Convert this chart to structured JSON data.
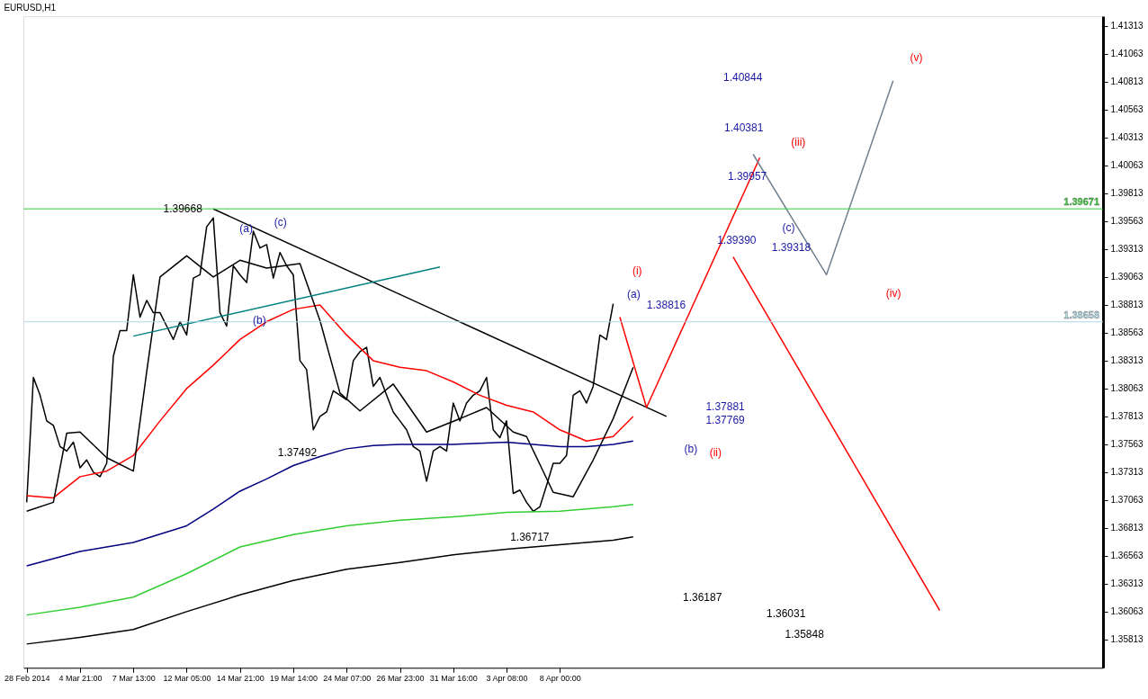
{
  "chart_data": {
    "type": "line",
    "title": "EURUSD,H1",
    "categories": [
      "28 Feb 2014",
      null,
      null,
      null,
      null,
      null,
      null,
      null,
      "4 Mar 21:00",
      null,
      null,
      null,
      null,
      null,
      null,
      null,
      "7 Mar 13:00",
      null,
      null,
      null,
      null,
      null,
      null,
      null,
      "12 Mar 05:00",
      null,
      null,
      null,
      null,
      null,
      null,
      null,
      "14 Mar 21:00",
      null,
      null,
      null,
      null,
      null,
      null,
      null,
      "19 Mar 14:00",
      null,
      null,
      null,
      null,
      null,
      null,
      null,
      "24 Mar 07:00",
      null,
      null,
      null,
      null,
      null,
      null,
      null,
      "26 Mar 23:00",
      null,
      null,
      null,
      null,
      null,
      null,
      null,
      "31 Mar 16:00",
      null,
      null,
      null,
      null,
      null,
      null,
      null,
      "3 Apr 08:00",
      null,
      null,
      null,
      null,
      null,
      null,
      null,
      "8 Apr 00:00",
      null,
      null,
      null,
      null,
      null,
      null,
      null,
      null,
      null,
      null,
      null,
      null,
      null,
      null,
      null,
      null,
      null,
      null,
      null,
      null,
      null,
      null,
      null,
      null,
      null,
      null,
      null,
      null,
      null,
      null,
      null,
      null,
      null,
      null,
      null,
      null,
      null,
      null,
      null,
      null,
      null,
      null,
      null,
      null,
      null,
      null,
      null,
      null,
      null,
      null,
      null,
      null,
      null,
      null,
      null,
      null,
      null,
      null,
      null,
      null,
      null,
      null,
      null,
      null,
      null,
      null,
      null,
      null,
      null,
      null,
      null,
      null,
      null,
      null,
      null,
      null,
      null,
      null,
      null,
      null,
      null
    ],
    "ylim": [
      1.35557,
      1.41398
    ],
    "yticks": [
      1.35813,
      1.36063,
      1.36313,
      1.36563,
      1.36813,
      1.37063,
      1.37313,
      1.37563,
      1.37813,
      1.38063,
      1.38313,
      1.38563,
      1.38813,
      1.39063,
      1.39313,
      1.39563,
      1.39813,
      1.40063,
      1.40313,
      1.40563,
      1.40813,
      1.41063,
      1.41313
    ],
    "grid": false,
    "marker": "none",
    "line_style": "solid",
    "series": [
      {
        "color": "#000000",
        "values": [
          1.3704,
          1.3816,
          1.38,
          1.3777,
          1.3773,
          1.3754,
          1.375,
          1.3758,
          1.3735,
          1.3742,
          1.3731,
          1.3727,
          1.3739,
          1.3835,
          1.3858,
          1.3858,
          1.3908,
          1.387,
          1.3885,
          1.3874,
          1.3874,
          1.3862,
          1.385,
          1.3866,
          1.3854,
          1.3905,
          1.3908,
          1.3951,
          1.3959,
          1.3874,
          1.3862,
          1.3916,
          1.3908,
          1.3901,
          1.3947,
          1.3932,
          1.3935,
          1.3905,
          1.3928,
          1.3916,
          1.3908,
          1.3831,
          1.3823,
          1.3769,
          1.3781,
          1.3785,
          1.3804,
          1.38,
          1.3796,
          1.3831,
          1.3839,
          1.3843,
          1.3808,
          1.3816,
          1.38,
          1.3785,
          1.3777,
          1.3769,
          1.3754,
          1.375,
          1.3723,
          1.375,
          1.3754,
          1.375,
          1.3793,
          1.3777,
          1.3793,
          1.38,
          1.3804,
          1.3816,
          1.3769,
          1.3762,
          1.3777,
          1.3712,
          1.3715,
          1.3704,
          1.3696,
          1.37,
          1.3719,
          1.3739,
          1.3739,
          1.3746,
          1.38,
          1.3804,
          1.3793,
          1.3808,
          1.3854,
          1.385,
          1.3882,
          null,
          null,
          null,
          null,
          null,
          null,
          null,
          null,
          null,
          null,
          null,
          null,
          null,
          null,
          null,
          null,
          null,
          null,
          null,
          null,
          null,
          null,
          null,
          null,
          null,
          null,
          null,
          null,
          null,
          null,
          null,
          null,
          null,
          null,
          null,
          null,
          null,
          null,
          null,
          null,
          null,
          null,
          null,
          null,
          null,
          null,
          null,
          null,
          null,
          null,
          null,
          null,
          null,
          null,
          null,
          null,
          null,
          null,
          null,
          null,
          null,
          null,
          null,
          null,
          null,
          null,
          null,
          null,
          null,
          null,
          null,
          null,
          null
        ]
      },
      {
        "color": "#ff0000",
        "values": [
          1.371,
          null,
          null,
          null,
          1.3708,
          null,
          null,
          null,
          1.3727,
          null,
          null,
          null,
          1.3732,
          null,
          null,
          null,
          1.3746,
          null,
          null,
          null,
          1.3777,
          null,
          null,
          null,
          1.3806,
          null,
          null,
          null,
          1.3827,
          null,
          null,
          null,
          1.385,
          null,
          null,
          null,
          1.3866,
          null,
          null,
          null,
          1.3877,
          null,
          null,
          null,
          1.3881,
          null,
          null,
          null,
          1.3854,
          null,
          null,
          null,
          1.3831,
          null,
          null,
          null,
          1.3825,
          null,
          null,
          null,
          1.3822,
          null,
          null,
          null,
          1.3812,
          null,
          null,
          null,
          1.38,
          null,
          null,
          null,
          1.3791,
          null,
          null,
          null,
          1.3785,
          null,
          null,
          null,
          1.3769,
          null,
          null,
          null,
          1.3759,
          null,
          null,
          null,
          1.3763,
          null,
          null,
          1.3781,
          null,
          null,
          null,
          null,
          null,
          null,
          null,
          null,
          null,
          null,
          null,
          null,
          null,
          null,
          null,
          null,
          null,
          null,
          null,
          null,
          null,
          null,
          null,
          null,
          null,
          null,
          null,
          null,
          null,
          null,
          null,
          null,
          null,
          null,
          null,
          null,
          null,
          null,
          null,
          null,
          null,
          null,
          null,
          null,
          null,
          null,
          null,
          null,
          null,
          null,
          null,
          null,
          null,
          null,
          null,
          null,
          null,
          null,
          null,
          null,
          null,
          null,
          null,
          null,
          null,
          null,
          null,
          null,
          null,
          null
        ]
      },
      {
        "color": "#000000",
        "values": [
          1.3696,
          null,
          null,
          null,
          1.3704,
          null,
          1.3766,
          null,
          1.3767,
          null,
          null,
          null,
          1.3744,
          null,
          null,
          null,
          1.3732,
          null,
          1.3821,
          null,
          1.3906,
          null,
          null,
          null,
          1.3925,
          null,
          null,
          null,
          1.3906,
          null,
          null,
          null,
          1.3921,
          null,
          null,
          null,
          1.3914,
          null,
          null,
          null,
          null,
          1.3918,
          null,
          null,
          1.3867,
          null,
          null,
          1.3802,
          null,
          null,
          1.3786,
          null,
          null,
          null,
          null,
          1.381,
          null,
          null,
          null,
          null,
          1.3767,
          null,
          null,
          null,
          null,
          1.3779,
          null,
          null,
          null,
          1.3789,
          null,
          null,
          null,
          1.3767,
          null,
          1.3763,
          null,
          null,
          null,
          1.3713,
          null,
          null,
          1.3709,
          null,
          null,
          1.3742,
          null,
          null,
          1.3779,
          null,
          null,
          1.3825,
          null,
          null,
          null,
          null,
          null,
          null,
          null,
          null,
          null,
          null,
          null,
          null,
          null,
          null,
          null,
          null,
          null,
          null,
          null,
          null,
          null,
          null,
          null,
          null,
          null,
          null,
          null,
          null,
          null,
          null,
          null,
          null,
          null,
          null,
          null,
          null,
          null,
          null,
          null,
          null,
          null,
          null,
          null,
          null,
          null,
          null,
          null,
          null,
          null,
          null,
          null,
          null,
          null,
          null,
          null,
          null,
          null,
          null,
          null,
          null,
          null,
          null,
          null,
          null,
          null,
          null,
          null,
          null,
          null,
          null
        ]
      },
      {
        "color": "#000080",
        "values": [
          1.3647,
          null,
          null,
          null,
          null,
          null,
          null,
          null,
          1.366,
          null,
          null,
          null,
          null,
          null,
          null,
          null,
          1.3668,
          null,
          null,
          null,
          null,
          null,
          null,
          null,
          1.3683,
          null,
          null,
          null,
          1.3698,
          null,
          null,
          null,
          1.3714,
          null,
          null,
          null,
          1.3725,
          null,
          null,
          null,
          1.3737,
          null,
          null,
          null,
          1.3745,
          null,
          null,
          null,
          1.3752,
          null,
          null,
          null,
          1.3755,
          null,
          null,
          null,
          1.3756,
          null,
          null,
          null,
          1.3756,
          null,
          null,
          null,
          1.3756,
          null,
          null,
          null,
          1.3757,
          null,
          null,
          null,
          1.3758,
          null,
          null,
          null,
          1.3756,
          null,
          null,
          null,
          1.3754,
          null,
          null,
          null,
          1.3754,
          null,
          null,
          null,
          1.3756,
          null,
          null,
          1.3759,
          null,
          null,
          null,
          null,
          null,
          null,
          null,
          null,
          null,
          null,
          null,
          null,
          null,
          null,
          null,
          null,
          null,
          null,
          null,
          null,
          null,
          null,
          null,
          null,
          null,
          null,
          null,
          null,
          null,
          null,
          null,
          null,
          null,
          null,
          null,
          null,
          null,
          null,
          null,
          null,
          null,
          null,
          null,
          null,
          null,
          null,
          null,
          null,
          null,
          null,
          null,
          null,
          null,
          null,
          null,
          null,
          null,
          null,
          null,
          null,
          null,
          null,
          null,
          null,
          null,
          null,
          null,
          null,
          null,
          null
        ]
      },
      {
        "color": "#32cd32",
        "values": [
          1.3603,
          null,
          null,
          null,
          null,
          null,
          null,
          null,
          1.361,
          null,
          null,
          null,
          null,
          null,
          null,
          null,
          1.3619,
          null,
          null,
          null,
          null,
          null,
          null,
          null,
          1.364,
          null,
          null,
          null,
          null,
          null,
          null,
          null,
          1.3664,
          null,
          null,
          null,
          null,
          null,
          null,
          null,
          1.3675,
          null,
          null,
          null,
          null,
          null,
          null,
          null,
          1.3683,
          null,
          null,
          null,
          null,
          null,
          null,
          null,
          1.3688,
          null,
          null,
          null,
          null,
          null,
          null,
          null,
          1.3691,
          null,
          null,
          null,
          null,
          null,
          null,
          null,
          1.3695,
          null,
          null,
          null,
          null,
          null,
          null,
          null,
          1.3696,
          null,
          null,
          null,
          null,
          null,
          null,
          null,
          1.37,
          null,
          null,
          1.3702,
          null,
          null,
          null,
          null,
          null,
          null,
          null,
          null,
          null,
          null,
          null,
          null,
          null,
          null,
          null,
          null,
          null,
          null,
          null,
          null,
          null,
          null,
          null,
          null,
          null,
          null,
          null,
          null,
          null,
          null,
          null,
          null,
          null,
          null,
          null,
          null,
          null,
          null,
          null,
          null,
          null,
          null,
          null,
          null,
          null,
          null,
          null,
          null,
          null,
          null,
          null,
          null,
          null,
          null,
          null,
          null,
          null,
          null,
          null,
          null,
          null,
          null,
          null,
          null,
          null,
          null,
          null,
          null,
          null,
          null
        ]
      },
      {
        "color": "#000000",
        "values": [
          1.3577,
          null,
          null,
          null,
          null,
          null,
          null,
          null,
          1.3583,
          null,
          null,
          null,
          null,
          null,
          null,
          null,
          1.359,
          null,
          null,
          null,
          null,
          null,
          null,
          null,
          1.3606,
          null,
          null,
          null,
          null,
          null,
          null,
          null,
          1.3621,
          null,
          null,
          null,
          null,
          null,
          null,
          null,
          1.3634,
          null,
          null,
          null,
          null,
          null,
          null,
          null,
          1.3644,
          null,
          null,
          null,
          null,
          null,
          null,
          null,
          1.365,
          null,
          null,
          null,
          null,
          null,
          null,
          null,
          1.3657,
          null,
          null,
          null,
          null,
          null,
          null,
          null,
          1.3662,
          null,
          null,
          null,
          null,
          null,
          null,
          null,
          1.3666,
          null,
          null,
          null,
          null,
          null,
          null,
          null,
          1.367,
          null,
          null,
          1.3673,
          null,
          null,
          null,
          null,
          null,
          null,
          null,
          null,
          null,
          null,
          null,
          null,
          null,
          null,
          null,
          null,
          null,
          null,
          null,
          null,
          null,
          null,
          null,
          null,
          null,
          null,
          null,
          null,
          null,
          null,
          null,
          null,
          null,
          null,
          null,
          null,
          null,
          null,
          null,
          null,
          null,
          null,
          null,
          null,
          null,
          null,
          null,
          null,
          null,
          null,
          null,
          null,
          null,
          null,
          null,
          null,
          null,
          null,
          null,
          null,
          null,
          null,
          null,
          null,
          null,
          null,
          null,
          null,
          null,
          null
        ]
      },
      {
        "color": "#000000",
        "values": [
          null,
          null,
          null,
          null,
          null,
          null,
          null,
          null,
          null,
          null,
          null,
          null,
          null,
          null,
          null,
          null,
          null,
          null,
          null,
          null,
          null,
          null,
          null,
          null,
          null,
          null,
          null,
          null,
          1.3967,
          null,
          null,
          null,
          null,
          null,
          null,
          null,
          null,
          null,
          null,
          null,
          null,
          null,
          null,
          null,
          null,
          null,
          null,
          null,
          null,
          null,
          null,
          null,
          null,
          null,
          null,
          null,
          null,
          null,
          null,
          null,
          null,
          null,
          null,
          null,
          null,
          null,
          null,
          null,
          null,
          null,
          null,
          null,
          null,
          null,
          null,
          null,
          null,
          null,
          null,
          null,
          null,
          null,
          null,
          null,
          null,
          null,
          null,
          null,
          null,
          null,
          null,
          null,
          null,
          null,
          null,
          null,
          1.3781,
          null,
          null,
          null,
          null,
          null,
          null,
          null,
          null,
          null,
          null,
          null,
          null,
          null,
          null,
          null,
          null,
          null,
          null,
          null,
          null,
          null,
          null,
          null,
          null,
          null,
          null,
          null,
          null,
          null,
          null,
          null,
          null,
          null,
          null,
          null,
          null,
          null,
          null,
          null,
          null,
          null,
          null,
          null,
          null,
          null,
          null,
          null,
          null,
          null,
          null,
          null,
          null,
          null,
          null,
          null,
          null,
          null,
          null,
          null,
          null,
          null,
          null,
          null,
          null,
          null
        ]
      },
      {
        "color": "#008080",
        "values": [
          null,
          null,
          null,
          null,
          null,
          null,
          null,
          null,
          null,
          null,
          null,
          null,
          null,
          null,
          null,
          null,
          1.3853,
          null,
          null,
          null,
          null,
          null,
          null,
          null,
          null,
          null,
          null,
          null,
          null,
          null,
          null,
          null,
          null,
          null,
          null,
          null,
          null,
          null,
          null,
          null,
          null,
          null,
          null,
          null,
          null,
          null,
          null,
          null,
          null,
          null,
          null,
          null,
          null,
          null,
          null,
          null,
          null,
          null,
          null,
          null,
          null,
          null,
          1.3915,
          null,
          null,
          null,
          null,
          null,
          null,
          null,
          null,
          null,
          null,
          null,
          null,
          null,
          null,
          null,
          null,
          null,
          null,
          null,
          null,
          null,
          null,
          null,
          null,
          null,
          null,
          null,
          null,
          null,
          null,
          null,
          null,
          null,
          null,
          null,
          null,
          null,
          null,
          null,
          null,
          null,
          null,
          null,
          null,
          null,
          null,
          null,
          null,
          null,
          null,
          null,
          null,
          null,
          null,
          null,
          null,
          null,
          null,
          null,
          null,
          null,
          null,
          null,
          null,
          null,
          null,
          null,
          null,
          null,
          null,
          null,
          null,
          null,
          null,
          null,
          null,
          null,
          null,
          null,
          null,
          null,
          null,
          null,
          null,
          null,
          null,
          null,
          null,
          null,
          null,
          null,
          null,
          null,
          null,
          null,
          null,
          null,
          null,
          null
        ]
      },
      {
        "color": "#ff0000",
        "values": [
          null,
          null,
          null,
          null,
          null,
          null,
          null,
          null,
          null,
          null,
          null,
          null,
          null,
          null,
          null,
          null,
          null,
          null,
          null,
          null,
          null,
          null,
          null,
          null,
          null,
          null,
          null,
          null,
          null,
          null,
          null,
          null,
          null,
          null,
          null,
          null,
          null,
          null,
          null,
          null,
          null,
          null,
          null,
          null,
          null,
          null,
          null,
          null,
          null,
          null,
          null,
          null,
          null,
          null,
          null,
          null,
          null,
          null,
          null,
          null,
          null,
          null,
          null,
          null,
          null,
          null,
          null,
          null,
          null,
          null,
          null,
          null,
          null,
          null,
          null,
          null,
          null,
          null,
          null,
          null,
          null,
          null,
          null,
          null,
          null,
          null,
          null,
          null,
          null,
          1.387,
          null,
          null,
          null,
          1.3789,
          null,
          null,
          null,
          null,
          null,
          null,
          null,
          null,
          null,
          null,
          null,
          null,
          null,
          null,
          null,
          null,
          1.4013,
          null,
          null,
          null,
          null,
          null,
          null,
          null,
          null,
          null,
          null,
          null,
          null,
          null,
          null,
          null,
          null,
          null,
          null,
          null,
          null,
          null,
          null,
          null,
          null,
          null,
          null,
          null,
          null,
          null,
          null,
          null,
          null,
          null,
          null,
          null,
          null,
          null,
          null,
          null,
          null,
          null,
          null,
          null,
          null,
          null,
          null,
          null,
          null,
          null,
          null,
          null
        ]
      },
      {
        "color": "#708090",
        "values": [
          null,
          null,
          null,
          null,
          null,
          null,
          null,
          null,
          null,
          null,
          null,
          null,
          null,
          null,
          null,
          null,
          null,
          null,
          null,
          null,
          null,
          null,
          null,
          null,
          null,
          null,
          null,
          null,
          null,
          null,
          null,
          null,
          null,
          null,
          null,
          null,
          null,
          null,
          null,
          null,
          null,
          null,
          null,
          null,
          null,
          null,
          null,
          null,
          null,
          null,
          null,
          null,
          null,
          null,
          null,
          null,
          null,
          null,
          null,
          null,
          null,
          null,
          null,
          null,
          null,
          null,
          null,
          null,
          null,
          null,
          null,
          null,
          null,
          null,
          null,
          null,
          null,
          null,
          null,
          null,
          null,
          null,
          null,
          null,
          null,
          null,
          null,
          null,
          null,
          null,
          null,
          null,
          null,
          null,
          null,
          null,
          null,
          null,
          null,
          null,
          null,
          null,
          null,
          null,
          null,
          null,
          null,
          null,
          null,
          1.4016,
          null,
          null,
          null,
          null,
          null,
          null,
          null,
          null,
          null,
          null,
          1.3908,
          null,
          null,
          null,
          null,
          null,
          null,
          null,
          null,
          null,
          1.4082,
          null,
          null,
          null,
          null,
          null,
          null,
          null,
          null,
          null,
          null,
          null,
          null,
          null,
          null,
          null,
          null,
          null,
          null,
          null,
          null,
          null,
          null,
          null,
          null,
          null,
          null,
          null,
          null,
          null,
          null,
          null
        ]
      },
      {
        "color": "#ff0000",
        "values": [
          null,
          null,
          null,
          null,
          null,
          null,
          null,
          null,
          null,
          null,
          null,
          null,
          null,
          null,
          null,
          null,
          null,
          null,
          null,
          null,
          null,
          null,
          null,
          null,
          null,
          null,
          null,
          null,
          null,
          null,
          null,
          null,
          null,
          null,
          null,
          null,
          null,
          null,
          null,
          null,
          null,
          null,
          null,
          null,
          null,
          null,
          null,
          null,
          null,
          null,
          null,
          null,
          null,
          null,
          null,
          null,
          null,
          null,
          null,
          null,
          null,
          null,
          null,
          null,
          null,
          null,
          null,
          null,
          null,
          null,
          null,
          null,
          null,
          null,
          null,
          null,
          null,
          null,
          null,
          null,
          null,
          null,
          null,
          null,
          null,
          null,
          null,
          null,
          null,
          null,
          null,
          null,
          null,
          null,
          null,
          null,
          null,
          null,
          null,
          null,
          null,
          null,
          null,
          null,
          null,
          null,
          1.3924,
          null,
          null,
          null,
          null,
          null,
          null,
          null,
          null,
          null,
          null,
          null,
          null,
          null,
          null,
          null,
          null,
          null,
          null,
          null,
          null,
          null,
          null,
          null,
          null,
          null,
          null,
          null,
          null,
          null,
          null,
          1.3607,
          null,
          null,
          null,
          null,
          null,
          null,
          null,
          null,
          null,
          null,
          null,
          null,
          null,
          null,
          null,
          null,
          null,
          null,
          null,
          null,
          null,
          null,
          null,
          null
        ]
      }
    ],
    "ref_lines": [
      {
        "axis": "y",
        "value": 1.39671,
        "label": "1.39671",
        "color": "#32cd32"
      },
      {
        "axis": "y",
        "value": 1.38658,
        "label": "1.38658",
        "color": "#add8e6"
      }
    ],
    "annotations": [
      "1.39668",
      "1.37492",
      "1.36717",
      "1.38816",
      "1.37881",
      "1.37769",
      "1.39390",
      "1.39318",
      "1.39957",
      "1.40381",
      "1.40844",
      "1.36187",
      "1.36031",
      "1.35848",
      "(a)",
      "(b)",
      "(c)",
      "(i)",
      "(a)",
      "(b)",
      "(ii)",
      "(iii)",
      "(c)",
      "(iv)",
      "(v)"
    ]
  }
}
